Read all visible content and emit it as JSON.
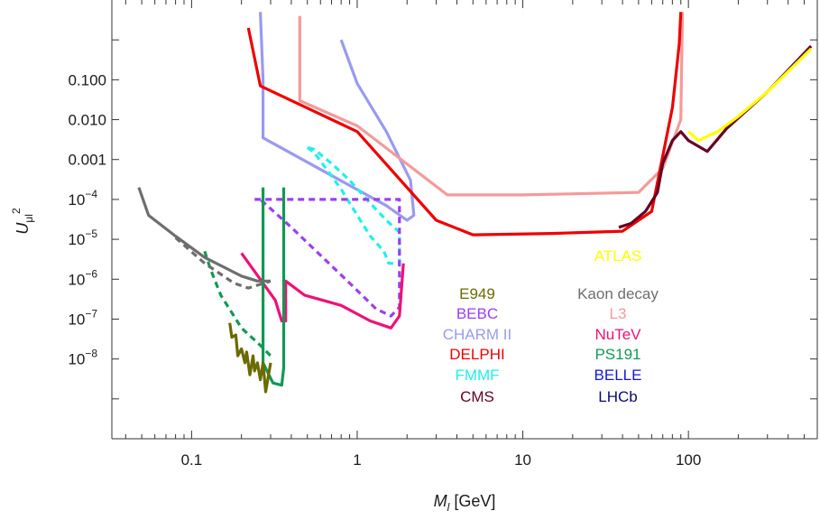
{
  "chart_data": {
    "type": "line",
    "x_scale": "log",
    "y_scale": "log",
    "xlim": [
      0.033,
      600
    ],
    "ylim": [
      1e-10,
      10
    ],
    "xlabel": {
      "main": "M",
      "sub": "l",
      "rest": " [GeV]"
    },
    "ylabel": {
      "main": "U",
      "sub": "μl",
      "sup": "2"
    },
    "x_ticks": [
      {
        "value": 0.1,
        "label": "0.1"
      },
      {
        "value": 1,
        "label": "1"
      },
      {
        "value": 10,
        "label": "10"
      },
      {
        "value": 100,
        "label": "100"
      }
    ],
    "y_ticks": [
      {
        "value": 0.1,
        "base": "0.100",
        "exp": ""
      },
      {
        "value": 0.01,
        "base": "0.010",
        "exp": ""
      },
      {
        "value": 0.001,
        "base": "0.001",
        "exp": ""
      },
      {
        "value": 0.0001,
        "base": "10",
        "exp": "−4"
      },
      {
        "value": 1e-05,
        "base": "10",
        "exp": "−5"
      },
      {
        "value": 1e-06,
        "base": "10",
        "exp": "−6"
      },
      {
        "value": 1e-07,
        "base": "10",
        "exp": "−7"
      },
      {
        "value": 1e-08,
        "base": "10",
        "exp": "−8"
      }
    ],
    "legend": [
      {
        "label": "ATLAS",
        "color": "#ffff00"
      },
      {
        "label": "E949",
        "color": "#6b6b00"
      },
      {
        "label": "Kaon decay",
        "color": "#6e6e6e"
      },
      {
        "label": "BEBC",
        "color": "#9b3ff0"
      },
      {
        "label": "L3",
        "color": "#f49a9a"
      },
      {
        "label": "CHARM II",
        "color": "#9a9af0"
      },
      {
        "label": "NuTeV",
        "color": "#ee1177"
      },
      {
        "label": "DELPHI",
        "color": "#ee0000"
      },
      {
        "label": "PS191",
        "color": "#119955"
      },
      {
        "label": "FMMF",
        "color": "#22eeee"
      },
      {
        "label": "BELLE",
        "color": "#1515dd"
      },
      {
        "label": "CMS",
        "color": "#660022"
      },
      {
        "label": "LHCb",
        "color": "#0a0a77"
      }
    ],
    "series": [
      {
        "name": "CHARM II",
        "color": "#9a9af0",
        "dash": "none",
        "points": [
          [
            0.26,
            5
          ],
          [
            0.27,
            0.1
          ],
          [
            0.27,
            0.0035
          ],
          [
            1.5,
            7e-05
          ],
          [
            2.0,
            3e-05
          ],
          [
            2.2,
            4e-05
          ],
          [
            2.1,
            0.0003
          ],
          [
            1.5,
            0.005
          ],
          [
            1.0,
            0.08
          ],
          [
            0.8,
            1
          ]
        ]
      },
      {
        "name": "L3",
        "color": "#f49a9a",
        "dash": "none",
        "points": [
          [
            0.45,
            4
          ],
          [
            0.45,
            0.03
          ],
          [
            1.0,
            0.007
          ],
          [
            3.5,
            0.00013
          ],
          [
            10,
            0.00013
          ],
          [
            50,
            0.00015
          ],
          [
            70,
            0.0006
          ],
          [
            90,
            0.01
          ],
          [
            92,
            5
          ]
        ]
      },
      {
        "name": "DELPHI",
        "color": "#ee0000",
        "dash": "none",
        "points": [
          [
            0.22,
            2
          ],
          [
            0.26,
            0.07
          ],
          [
            1.0,
            0.005
          ],
          [
            3.0,
            3e-05
          ],
          [
            5.0,
            1.3e-05
          ],
          [
            15,
            1.4e-05
          ],
          [
            40,
            1.6e-05
          ],
          [
            60,
            5e-05
          ],
          [
            80,
            0.02
          ],
          [
            88,
            0.8
          ],
          [
            90,
            5
          ]
        ]
      },
      {
        "name": "CMS",
        "color": "#660022",
        "dash": "none",
        "points": [
          [
            38,
            2e-05
          ],
          [
            45,
            2.5e-05
          ],
          [
            55,
            5e-05
          ],
          [
            65,
            0.00015
          ],
          [
            70,
            0.0008
          ],
          [
            80,
            0.003
          ],
          [
            90,
            0.005
          ],
          [
            100,
            0.003
          ],
          [
            130,
            0.0016
          ],
          [
            170,
            0.006
          ],
          [
            300,
            0.05
          ],
          [
            550,
            0.7
          ]
        ]
      },
      {
        "name": "ATLAS",
        "color": "#ffff00",
        "dash": "none",
        "points": [
          [
            100,
            0.005
          ],
          [
            115,
            0.003
          ],
          [
            150,
            0.005
          ],
          [
            200,
            0.012
          ],
          [
            300,
            0.05
          ],
          [
            550,
            0.6
          ]
        ]
      },
      {
        "name": "FMMF",
        "color": "#22eeee",
        "dash": "dashed",
        "points": [
          [
            0.5,
            0.002
          ],
          [
            0.55,
            0.0015
          ],
          [
            0.8,
            0.00018
          ],
          [
            1.0,
            4e-05
          ],
          [
            1.2,
            1.2e-05
          ],
          [
            1.45,
            5e-06
          ],
          [
            1.55,
            2.5e-06
          ],
          [
            1.8,
            2.5e-06
          ],
          [
            1.8,
            1.5e-05
          ],
          [
            1.5,
            3e-05
          ],
          [
            1.2,
            8e-05
          ],
          [
            0.9,
            0.0003
          ],
          [
            0.7,
            0.0008
          ],
          [
            0.55,
            0.0018
          ],
          [
            0.5,
            0.002
          ]
        ]
      },
      {
        "name": "BEBC",
        "color": "#9b3ff0",
        "dash": "dashed",
        "points": [
          [
            0.24,
            0.0001
          ],
          [
            1.8,
            0.0001
          ],
          [
            1.8,
            2e-07
          ],
          [
            1.6,
            1.2e-07
          ],
          [
            1.3,
            1.8e-07
          ],
          [
            0.9,
            8e-07
          ],
          [
            0.6,
            4e-06
          ],
          [
            0.4,
            2e-05
          ],
          [
            0.26,
            0.0001
          ]
        ]
      },
      {
        "name": "NuTeV",
        "color": "#ee1177",
        "dash": "none",
        "points": [
          [
            0.2,
            4.5e-06
          ],
          [
            0.32,
            3e-07
          ],
          [
            0.35,
            9e-08
          ],
          [
            0.37,
            9e-08
          ],
          [
            0.37,
            9e-07
          ],
          [
            0.48,
            4e-07
          ],
          [
            0.8,
            2.2e-07
          ],
          [
            1.2,
            9e-08
          ],
          [
            1.6,
            6e-08
          ],
          [
            1.8,
            1.2e-07
          ],
          [
            1.9,
            2.5e-06
          ]
        ]
      },
      {
        "name": "PS191 (wide)",
        "color": "#119955",
        "dash": "none",
        "points": [
          [
            0.27,
            0.0002
          ],
          [
            0.27,
            8e-09
          ],
          [
            0.31,
            2.5e-09
          ],
          [
            0.35,
            2.2e-09
          ],
          [
            0.36,
            6e-09
          ],
          [
            0.36,
            0.0002
          ]
        ]
      },
      {
        "name": "PS191 (dashed)",
        "color": "#119955",
        "dash": "dashed",
        "points": [
          [
            0.12,
            5e-06
          ],
          [
            0.13,
            1.8e-06
          ],
          [
            0.15,
            4e-07
          ],
          [
            0.2,
            6e-08
          ],
          [
            0.26,
            2.2e-08
          ],
          [
            0.3,
            1.2e-08
          ]
        ]
      },
      {
        "name": "Kaon decay",
        "color": "#6e6e6e",
        "dash": "none",
        "points": [
          [
            0.048,
            0.0002
          ],
          [
            0.055,
            4e-05
          ],
          [
            0.08,
            1.2e-05
          ],
          [
            0.12,
            3.5e-06
          ],
          [
            0.2,
            1.2e-06
          ],
          [
            0.25,
            9e-07
          ],
          [
            0.3,
            9e-07
          ]
        ]
      },
      {
        "name": "Kaon decay (dashed)",
        "color": "#6e6e6e",
        "dash": "dashed",
        "points": [
          [
            0.08,
            1.1e-05
          ],
          [
            0.12,
            2.5e-06
          ],
          [
            0.18,
            8e-07
          ],
          [
            0.22,
            6e-07
          ],
          [
            0.3,
            9e-07
          ]
        ]
      },
      {
        "name": "E949",
        "color": "#6b6b00",
        "dash": "none",
        "points": [
          [
            0.17,
            8e-08
          ],
          [
            0.175,
            3.5e-08
          ],
          [
            0.185,
            4e-08
          ],
          [
            0.19,
            1.2e-08
          ],
          [
            0.2,
            1.8e-08
          ],
          [
            0.21,
            8e-09
          ],
          [
            0.215,
            1.5e-08
          ],
          [
            0.225,
            4e-09
          ],
          [
            0.235,
            1.2e-08
          ],
          [
            0.24,
            5e-09
          ],
          [
            0.25,
            8e-09
          ],
          [
            0.26,
            3e-09
          ],
          [
            0.27,
            8e-09
          ],
          [
            0.28,
            1.5e-09
          ],
          [
            0.3,
            8e-09
          ]
        ]
      }
    ]
  }
}
